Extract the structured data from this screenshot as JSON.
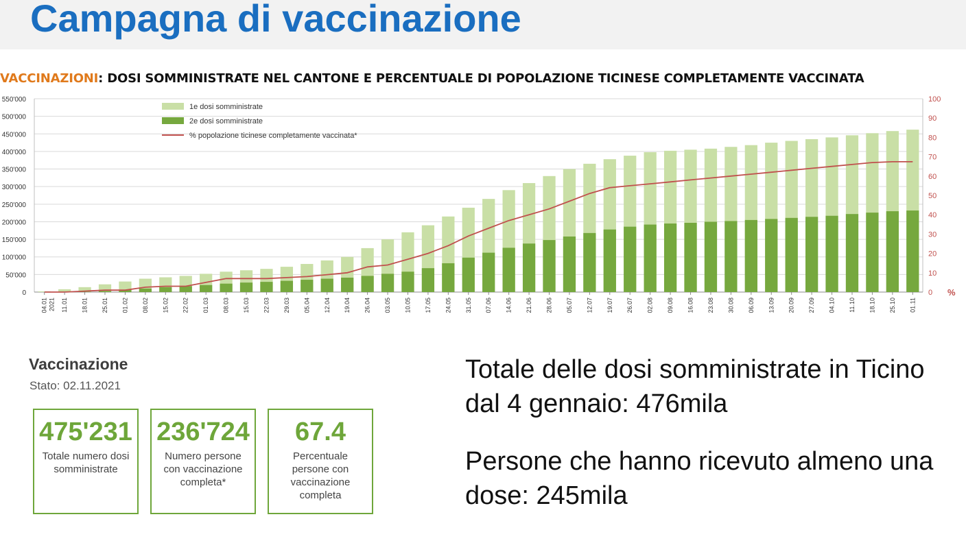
{
  "page": {
    "title": "Campagna di vaccinazione",
    "chart_heading_highlight": "VACCINAZIONI",
    "chart_heading_rest": ": DOSI SOMMINISTRATE NEL CANTONE E PERCENTUALE DI POPOLAZIONE TICINESE COMPLETAMENTE VACCINATA"
  },
  "kpi": {
    "title": "Vaccinazione",
    "status": "Stato: 02.11.2021",
    "cards": [
      {
        "value": "475'231",
        "label": "Totale numero dosi somministrate"
      },
      {
        "value": "236'724",
        "label": "Numero persone con vaccinazione completa*"
      },
      {
        "value": "67.4",
        "label": "Percentuale persone con vaccinazione completa"
      }
    ]
  },
  "summary": {
    "line1": "Totale delle dosi somministrate in Ticino dal 4 gennaio: 476mila",
    "line2": "Persone che hanno ricevuto almeno una dose: 245mila"
  },
  "colors": {
    "title_blue": "#1a6ec0",
    "heading_orange": "#e07a1c",
    "first_dose": "#c9dfa6",
    "second_dose": "#76a83e",
    "percent_line": "#c0504d",
    "kpi_green": "#6ea63a"
  },
  "chart_data": {
    "type": "bar",
    "stacked": true,
    "y_left_ticks": [
      "0",
      "50'000",
      "100'000",
      "150'000",
      "200'000",
      "250'000",
      "300'000",
      "350'000",
      "400'000",
      "450'000",
      "500'000",
      "550'000"
    ],
    "y_left_lim": [
      0,
      550000
    ],
    "y_right_ticks": [
      "0",
      "10",
      "20",
      "30",
      "40",
      "50",
      "60",
      "70",
      "80",
      "90",
      "100"
    ],
    "y_right_lim": [
      0,
      100
    ],
    "y_right_unit": "%",
    "grid": true,
    "legend_position": "top-left",
    "x_tick_labels": [
      "04.01",
      "11.01",
      "18.01",
      "25.01",
      "01.02",
      "08.02",
      "15.02",
      "22.02",
      "01.03",
      "08.03",
      "15.03",
      "22.03",
      "29.03",
      "05.04",
      "12.04",
      "19.04",
      "26.04",
      "03.05",
      "10.05",
      "17.05",
      "24.05",
      "31.05",
      "07.06",
      "14.06",
      "21.06",
      "28.06",
      "05.07",
      "12.07",
      "19.07",
      "26.07",
      "02.08",
      "09.08",
      "16.08",
      "23.08",
      "30.08",
      "06.09",
      "13.09",
      "20.09",
      "27.09",
      "04.10",
      "11.10",
      "18.10",
      "25.10",
      "01.11"
    ],
    "x_first_label_year": "2021",
    "series": [
      {
        "name": "1e dosi somministrate",
        "kind": "bar",
        "values": [
          2000,
          8000,
          14000,
          22000,
          30000,
          38000,
          42000,
          46000,
          52000,
          58000,
          62000,
          66000,
          72000,
          80000,
          90000,
          100000,
          125000,
          150000,
          170000,
          190000,
          215000,
          240000,
          265000,
          290000,
          310000,
          330000,
          350000,
          365000,
          378000,
          388000,
          398000,
          402000,
          405000,
          408000,
          413000,
          418000,
          425000,
          430000,
          435000,
          440000,
          446000,
          452000,
          458000,
          462000
        ]
      },
      {
        "name": "2e dosi somministrate",
        "kind": "bar",
        "values": [
          0,
          0,
          1000,
          3000,
          6000,
          10000,
          14000,
          17000,
          20000,
          24000,
          27000,
          29000,
          32000,
          35000,
          38000,
          41000,
          46000,
          52000,
          58000,
          68000,
          82000,
          98000,
          112000,
          126000,
          138000,
          148000,
          158000,
          168000,
          178000,
          186000,
          192000,
          195000,
          197000,
          200000,
          202000,
          205000,
          208000,
          211000,
          214000,
          217000,
          222000,
          226000,
          230000,
          232000
        ]
      },
      {
        "name": "% popolazione ticinese completamente vaccinata*",
        "kind": "line",
        "values": [
          0,
          0,
          0.5,
          1,
          1,
          2.5,
          3,
          3,
          5,
          7,
          7,
          7,
          7.5,
          8,
          9,
          10,
          13,
          14,
          17,
          20,
          24,
          29,
          33,
          37,
          40,
          43,
          47,
          51,
          54,
          55,
          56,
          57,
          58,
          59,
          60,
          61,
          62,
          63,
          64,
          65,
          66,
          67,
          67.4,
          67.4
        ]
      }
    ]
  }
}
